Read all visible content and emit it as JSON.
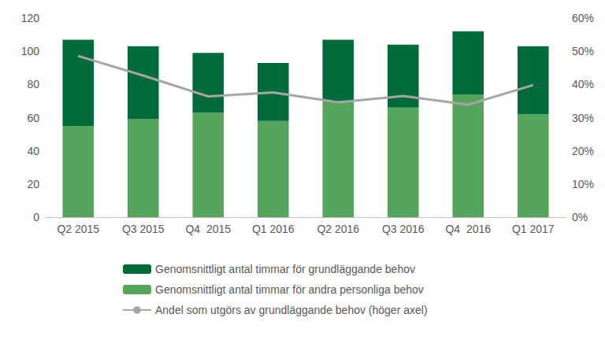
{
  "chart_data": {
    "type": "bar",
    "categories": [
      "Q2 2015",
      "Q3 2015",
      "Q4  2015",
      "Q1 2016",
      "Q2 2016",
      "Q3 2016",
      "Q4  2016",
      "Q1 2017"
    ],
    "stacked": true,
    "grid": false,
    "legend": "bottom",
    "ylim": [
      0,
      120
    ],
    "yticks": [
      0,
      20,
      40,
      60,
      80,
      100,
      120
    ],
    "y2lim": [
      0,
      60
    ],
    "y2ticks": [
      {
        "value": 0,
        "label": "0%"
      },
      {
        "value": 10,
        "label": "10%"
      },
      {
        "value": 20,
        "label": "20%"
      },
      {
        "value": 30,
        "label": "30%"
      },
      {
        "value": 40,
        "label": "40%"
      },
      {
        "value": 50,
        "label": "50%"
      },
      {
        "value": 60,
        "label": "60%"
      }
    ],
    "series": [
      {
        "name": "Genomsnittligt antal timmar för andra personliga behov",
        "type": "bar",
        "color": "#56a55c",
        "values": [
          55,
          59,
          63,
          58,
          70,
          66,
          74,
          62
        ]
      },
      {
        "name": "Genomsnittligt antal timmar för grundläggande behov",
        "type": "bar",
        "color": "#006b3a",
        "values": [
          52,
          44,
          36,
          35,
          37,
          38,
          38,
          41
        ]
      },
      {
        "name": "Andel som utgörs av grundläggande behov (höger axel)",
        "type": "line",
        "axis": "y2",
        "color": "#a6a6a6",
        "marker": "none",
        "line_style": "solid",
        "values": [
          48.6,
          42.7,
          36.4,
          37.6,
          34.6,
          36.5,
          33.9,
          39.8
        ]
      }
    ]
  }
}
